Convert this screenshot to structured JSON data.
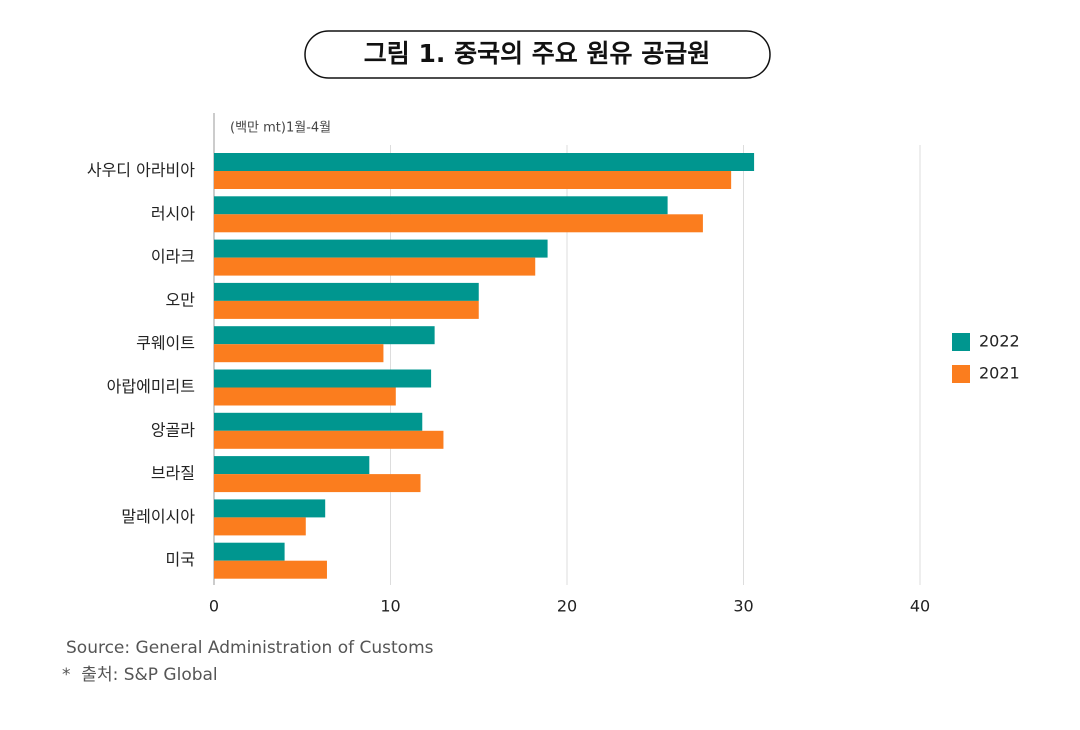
{
  "chart_data": {
    "type": "hbar",
    "title": "그림 1. 중국의 주요 원유 공급원",
    "unit_label": "(백만 mt)1월-4월",
    "categories": [
      "사우디 아라비아",
      "러시아",
      "이라크",
      "오만",
      "쿠웨이트",
      "아랍에미리트",
      "앙골라",
      "브라질",
      "말레이시아",
      "미국"
    ],
    "series": [
      {
        "name": "2022",
        "color": "#00968f",
        "values": [
          30.6,
          25.7,
          18.9,
          15.0,
          12.5,
          12.3,
          11.8,
          8.8,
          6.3,
          4.0
        ]
      },
      {
        "name": "2021",
        "color": "#fb7d1e",
        "values": [
          29.3,
          27.7,
          18.2,
          15.0,
          9.6,
          10.3,
          13.0,
          11.7,
          5.2,
          6.4
        ]
      }
    ],
    "xlim": [
      0,
      40
    ],
    "xticks": [
      0,
      10,
      20,
      30,
      40
    ],
    "grid": true,
    "legend": "right",
    "source": "Source: General Administration of Customs",
    "note": "*  출처: S&P Global"
  }
}
